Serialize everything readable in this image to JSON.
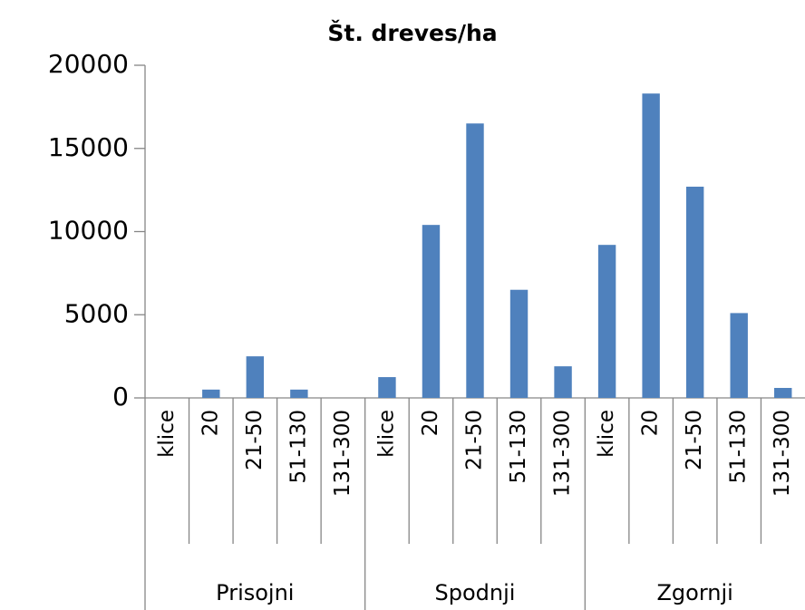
{
  "chart_data": {
    "type": "bar",
    "title": "Št. dreves/ha",
    "categories": [
      "klice",
      "20",
      "21-50",
      "51-130",
      "131-300",
      "klice",
      "20",
      "21-50",
      "51-130",
      "131-300",
      "klice",
      "20",
      "21-50",
      "51-130",
      "131-300"
    ],
    "groups": [
      "Prisojni",
      "Spodnji",
      "Zgornji"
    ],
    "values": [
      0,
      500,
      2500,
      500,
      0,
      1250,
      10400,
      16500,
      6500,
      1900,
      9200,
      18300,
      12700,
      5100,
      600
    ],
    "color": "#4f81bd",
    "ylim": [
      0,
      20000
    ],
    "yticks": [
      0,
      5000,
      10000,
      15000,
      20000
    ],
    "grid": false
  }
}
